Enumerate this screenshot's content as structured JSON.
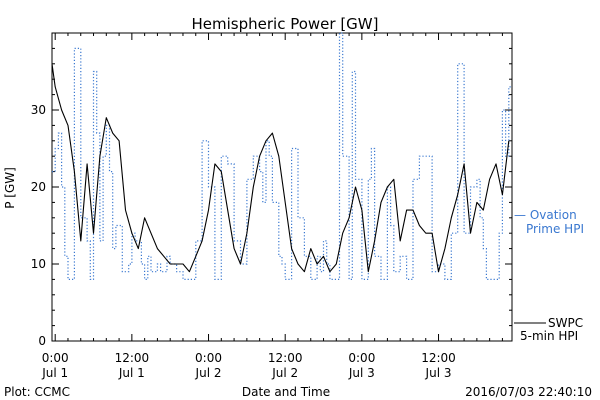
{
  "chart_data": {
    "type": "line",
    "title": "Hemispheric Power [GW]",
    "ylabel": "P [GW]",
    "xlabel": "Date and Time",
    "ylim": [
      0,
      40
    ],
    "xlim_hours": [
      -0.5,
      71.5
    ],
    "yticks": [
      0,
      10,
      20,
      30
    ],
    "xticks": [
      {
        "hours": 0,
        "time": "0:00",
        "day": "Jul 1"
      },
      {
        "hours": 12,
        "time": "12:00",
        "day": "Jul 1"
      },
      {
        "hours": 24,
        "time": "0:00",
        "day": "Jul 2"
      },
      {
        "hours": 36,
        "time": "12:00",
        "day": "Jul 2"
      },
      {
        "hours": 48,
        "time": "0:00",
        "day": "Jul 3"
      },
      {
        "hours": 60,
        "time": "12:00",
        "day": "Jul 3"
      }
    ],
    "series": [
      {
        "name": "Ovation Prime HPI",
        "legend_lines": [
          "— Ovation",
          "Prime HPI"
        ],
        "color": "#3a78d0",
        "style": "dotted-step",
        "x": [
          -0.5,
          0.0,
          0.5,
          1.0,
          1.5,
          2.0,
          3.0,
          4.0,
          5.0,
          5.5,
          6.0,
          6.5,
          7.0,
          7.5,
          8.0,
          8.5,
          9.0,
          9.5,
          10.5,
          11.5,
          12.0,
          12.5,
          13.0,
          13.5,
          14.0,
          14.5,
          15.0,
          16.0,
          16.5,
          17.5,
          18.0,
          19.0,
          20.0,
          21.0,
          22.0,
          23.0,
          24.0,
          25.0,
          26.0,
          27.0,
          28.0,
          29.0,
          30.0,
          31.0,
          32.0,
          32.5,
          33.0,
          33.5,
          34.0,
          35.0,
          35.5,
          36.0,
          37.0,
          37.5,
          38.0,
          39.0,
          40.0,
          41.0,
          41.5,
          42.0,
          42.5,
          43.0,
          44.0,
          44.5,
          45.0,
          46.0,
          46.5,
          47.0,
          48.0,
          49.0,
          49.5,
          50.0,
          51.0,
          52.0,
          52.5,
          53.0,
          54.0,
          55.0,
          55.5,
          56.0,
          57.0,
          58.0,
          59.0,
          60.0,
          61.0,
          62.0,
          63.0,
          64.0,
          65.0,
          66.0,
          66.5,
          67.0,
          67.5,
          68.0,
          69.0,
          69.5,
          70.0,
          70.5,
          71.0
        ],
        "values": [
          22,
          25,
          27,
          20,
          11,
          8,
          38,
          16,
          13,
          8,
          35,
          27,
          13,
          24,
          28,
          22,
          12,
          15,
          9,
          10,
          14,
          13,
          13,
          10,
          8,
          11,
          9,
          10,
          9,
          11,
          10,
          9,
          8,
          8,
          13,
          26,
          20,
          8,
          24,
          23,
          13,
          10,
          21,
          24,
          22,
          18,
          26,
          24,
          18,
          11,
          10,
          8,
          25,
          25,
          16,
          11,
          8,
          11,
          9,
          13,
          10,
          8,
          8,
          40,
          24,
          8,
          35,
          21,
          8,
          21,
          25,
          11,
          8,
          20,
          15,
          9,
          11,
          8,
          8,
          21,
          24,
          24,
          9,
          10,
          8,
          14,
          36,
          14,
          20,
          21,
          16,
          12,
          8,
          8,
          8,
          14,
          30,
          24,
          33
        ]
      },
      {
        "name": "SWPC 5-min HPI",
        "legend_lines": [
          "SWPC",
          "5-min HPI"
        ],
        "color": "#000000",
        "style": "solid",
        "x": [
          -0.5,
          0,
          1,
          2,
          3,
          4,
          5,
          6,
          7,
          8,
          9,
          10,
          11,
          12,
          13,
          14,
          15,
          16,
          17,
          18,
          19,
          20,
          21,
          22,
          23,
          24,
          25,
          26,
          27,
          28,
          29,
          30,
          31,
          32,
          33,
          34,
          35,
          36,
          37,
          38,
          39,
          40,
          41,
          42,
          43,
          44,
          45,
          46,
          47,
          48,
          49,
          50,
          51,
          52,
          53,
          54,
          55,
          56,
          57,
          58,
          59,
          60,
          61,
          62,
          63,
          64,
          65,
          66,
          67,
          68,
          69,
          70,
          71
        ],
        "values": [
          36,
          33,
          30,
          28,
          22,
          13,
          23,
          14,
          24,
          29,
          27,
          26,
          17,
          14,
          12,
          16,
          14,
          12,
          11,
          10,
          10,
          10,
          9,
          11,
          13,
          17,
          23,
          22,
          17,
          12,
          10,
          14,
          20,
          24,
          26,
          27,
          24,
          18,
          12,
          10,
          9,
          12,
          10,
          11,
          9,
          10,
          14,
          16,
          20,
          17,
          9,
          13,
          18,
          20,
          21,
          13,
          17,
          17,
          15,
          14,
          14,
          9,
          12,
          16,
          19,
          23,
          14,
          18,
          17,
          21,
          23,
          19,
          26
        ]
      }
    ],
    "legend_placement": "right",
    "grid": false
  },
  "footer": {
    "left": "Plot: CCMC",
    "center": "Date and Time",
    "right": "2016/07/03 22:40:10"
  }
}
